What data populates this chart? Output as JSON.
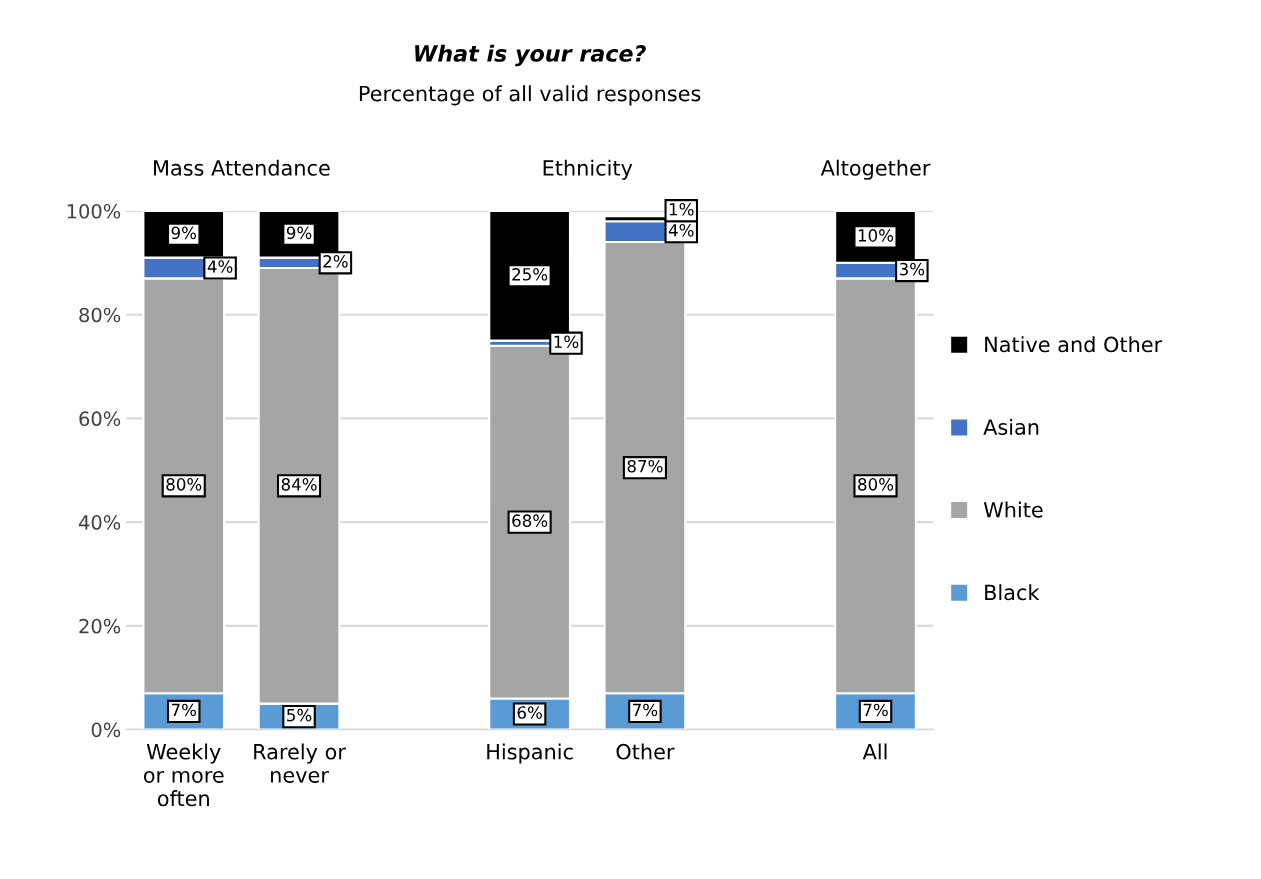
{
  "chart_data": {
    "type": "bar",
    "stacked": true,
    "title": "What is your race?",
    "subtitle": "Percentage of all valid responses",
    "annotations": [
      "Mass Attendance",
      "Ethnicity",
      "Altogether"
    ],
    "categories": [
      "Weekly\nor more\noften",
      "Rarely or\nnever",
      null,
      "Hispanic",
      "Other",
      null,
      "All"
    ],
    "series": [
      {
        "name": "Black",
        "color": "#5b9bd5",
        "values": [
          7,
          5,
          null,
          6,
          7,
          null,
          7
        ],
        "value_labels": [
          "7%",
          "5%",
          null,
          "6%",
          "7%",
          null,
          "7%"
        ]
      },
      {
        "name": "White",
        "color": "#a5a5a5",
        "values": [
          80,
          84,
          null,
          68,
          87,
          null,
          80
        ],
        "value_labels": [
          "80%",
          "84%",
          null,
          "68%",
          "87%",
          null,
          "80%"
        ]
      },
      {
        "name": "Asian",
        "color": "#4472c4",
        "values": [
          4,
          2,
          null,
          1,
          4,
          null,
          3
        ],
        "value_labels": [
          "4%",
          "2%",
          null,
          "1%",
          "4%",
          null,
          "3%"
        ]
      },
      {
        "name": "Native and Other",
        "color": "#000000",
        "values": [
          9,
          9,
          null,
          25,
          1,
          null,
          10
        ],
        "value_labels": [
          "9%",
          "9%",
          null,
          "25%",
          "1%",
          null,
          "10%"
        ]
      }
    ],
    "ylim": [
      0,
      100
    ],
    "yticks": [
      {
        "value": 0,
        "label": "0%"
      },
      {
        "value": 20,
        "label": "20%"
      },
      {
        "value": 40,
        "label": "40%"
      },
      {
        "value": 60,
        "label": "60%"
      },
      {
        "value": 80,
        "label": "80%"
      },
      {
        "value": 100,
        "label": "100%"
      }
    ],
    "grid": "y",
    "legend": "right"
  }
}
